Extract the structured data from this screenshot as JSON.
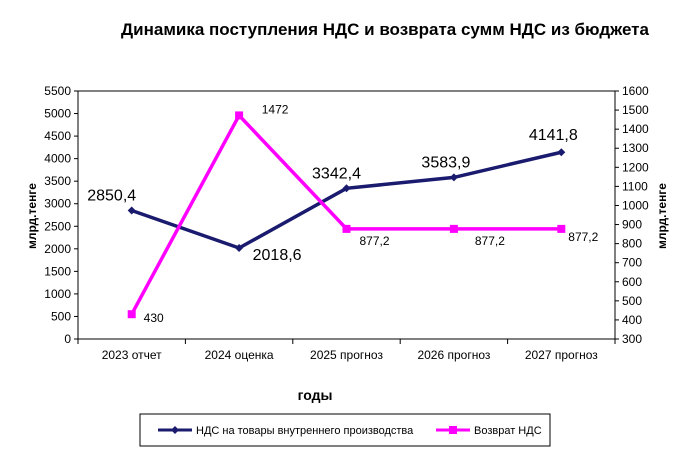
{
  "chart_data": {
    "type": "line",
    "title": "Динамика поступления НДС и возврата сумм НДС из бюджета",
    "xlabel": "годы",
    "ylabel_left": "млрд.тенге",
    "ylabel_right": "млрд.тенге",
    "categories": [
      "2023 отчет",
      "2024 оценка",
      "2025 прогноз",
      "2026 прогноз",
      "2027 прогноз"
    ],
    "y_left": {
      "min": 0,
      "max": 5500,
      "step": 500
    },
    "y_right": {
      "min": 300,
      "max": 1600,
      "step": 100
    },
    "grid": false,
    "legend_position": "bottom",
    "series": [
      {
        "name": "НДС на товары внутреннего производства",
        "axis": "left",
        "color": "#1a1a6e",
        "values": [
          2850.4,
          2018.6,
          3342.4,
          3583.9,
          4141.8
        ],
        "labels": [
          "2850,4",
          "2018,6",
          "3342,4",
          "3583,9",
          "4141,8"
        ]
      },
      {
        "name": "Возврат НДС",
        "axis": "right",
        "color": "#ff00ff",
        "values": [
          430,
          1472,
          877.2,
          877.2,
          877.2
        ],
        "labels": [
          "430",
          "1472",
          "877,2",
          "877,2",
          "877,2"
        ]
      }
    ]
  }
}
